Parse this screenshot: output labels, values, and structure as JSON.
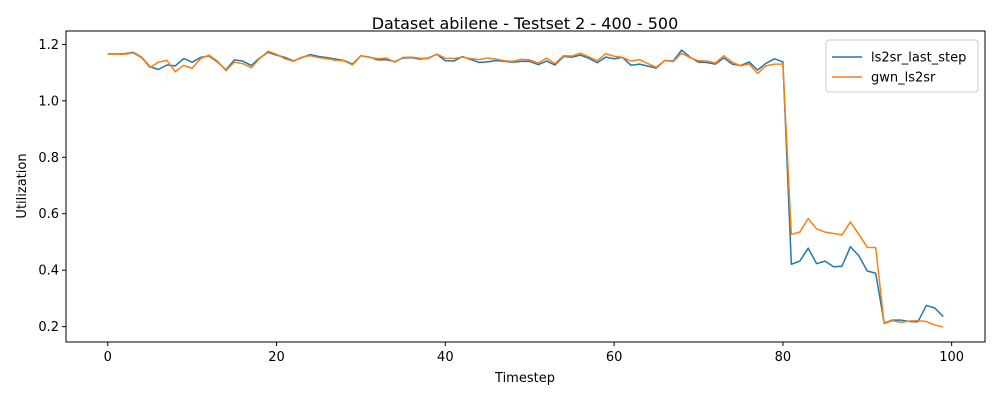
{
  "chart_data": {
    "type": "line",
    "title": "Dataset abilene - Testset 2 - 400 - 500",
    "xlabel": "Timestep",
    "ylabel": "Utilization",
    "xlim": [
      -4.95,
      103.95
    ],
    "ylim": [
      0.1455,
      1.2475
    ],
    "xticks": [
      0,
      20,
      40,
      60,
      80,
      100
    ],
    "yticks": [
      0.2,
      0.4,
      0.6,
      0.8,
      1.0,
      1.2
    ],
    "ytick_labels": [
      "0.2",
      "0.4",
      "0.6",
      "0.8",
      "1.0",
      "1.2"
    ],
    "grid": false,
    "legend": "top-right",
    "series": [
      {
        "name": "ls2sr_last_step",
        "color": "#1f77b4",
        "values": [
          1.167,
          1.166,
          1.167,
          1.172,
          1.155,
          1.121,
          1.111,
          1.127,
          1.124,
          1.15,
          1.137,
          1.154,
          1.159,
          1.138,
          1.11,
          1.145,
          1.141,
          1.125,
          1.152,
          1.172,
          1.162,
          1.154,
          1.142,
          1.153,
          1.164,
          1.157,
          1.153,
          1.148,
          1.143,
          1.13,
          1.16,
          1.155,
          1.145,
          1.146,
          1.139,
          1.152,
          1.153,
          1.148,
          1.152,
          1.165,
          1.142,
          1.141,
          1.157,
          1.147,
          1.136,
          1.138,
          1.143,
          1.14,
          1.137,
          1.14,
          1.14,
          1.128,
          1.141,
          1.127,
          1.157,
          1.155,
          1.162,
          1.151,
          1.135,
          1.155,
          1.149,
          1.154,
          1.126,
          1.13,
          1.123,
          1.116,
          1.143,
          1.141,
          1.18,
          1.155,
          1.137,
          1.136,
          1.13,
          1.152,
          1.13,
          1.125,
          1.138,
          1.109,
          1.133,
          1.149,
          1.138,
          0.421,
          0.432,
          0.478,
          0.423,
          0.432,
          0.412,
          0.414,
          0.483,
          0.451,
          0.397,
          0.389,
          0.213,
          0.223,
          0.223,
          0.218,
          0.217,
          0.275,
          0.266,
          0.236
        ]
      },
      {
        "name": "gwn_ls2sr",
        "color": "#ff7f0e",
        "values": [
          1.166,
          1.165,
          1.165,
          1.17,
          1.153,
          1.118,
          1.137,
          1.144,
          1.103,
          1.126,
          1.115,
          1.15,
          1.162,
          1.141,
          1.107,
          1.137,
          1.132,
          1.117,
          1.15,
          1.176,
          1.165,
          1.149,
          1.14,
          1.155,
          1.16,
          1.153,
          1.149,
          1.144,
          1.142,
          1.127,
          1.16,
          1.154,
          1.149,
          1.152,
          1.137,
          1.154,
          1.155,
          1.151,
          1.15,
          1.166,
          1.151,
          1.15,
          1.155,
          1.15,
          1.146,
          1.152,
          1.148,
          1.142,
          1.14,
          1.147,
          1.145,
          1.134,
          1.151,
          1.132,
          1.16,
          1.159,
          1.169,
          1.156,
          1.142,
          1.167,
          1.158,
          1.154,
          1.141,
          1.146,
          1.132,
          1.119,
          1.143,
          1.139,
          1.169,
          1.153,
          1.142,
          1.141,
          1.134,
          1.16,
          1.137,
          1.124,
          1.131,
          1.097,
          1.124,
          1.13,
          1.13,
          0.527,
          0.535,
          0.583,
          0.546,
          0.535,
          0.53,
          0.525,
          0.571,
          0.527,
          0.481,
          0.48,
          0.211,
          0.221,
          0.215,
          0.22,
          0.221,
          0.218,
          0.206,
          0.198
        ]
      }
    ]
  }
}
